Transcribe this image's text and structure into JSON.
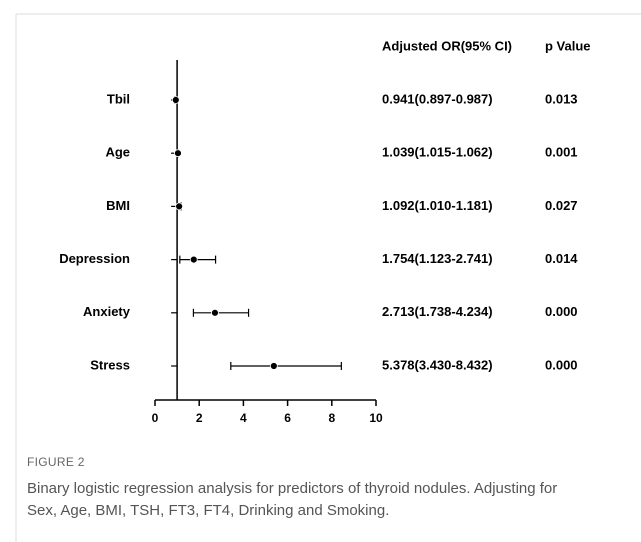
{
  "chart_data": {
    "type": "forest",
    "or_header": "Adjusted OR(95% CI)",
    "p_header": "p Value",
    "categories": [
      "Tbil",
      "Age",
      "BMI",
      "Depression",
      "Anxiety",
      "Stress"
    ],
    "values": [
      0.941,
      1.039,
      1.092,
      1.754,
      2.713,
      5.378
    ],
    "ci_low": [
      0.897,
      1.015,
      1.01,
      1.123,
      1.738,
      3.43
    ],
    "ci_high": [
      0.987,
      1.062,
      1.181,
      2.741,
      4.234,
      8.432
    ],
    "value_labels": [
      "0.941(0.897-0.987)",
      "1.039(1.015-1.062)",
      "1.092(1.010-1.181)",
      "1.754(1.123-2.741)",
      "2.713(1.738-4.234)",
      "5.378(3.430-8.432)"
    ],
    "p_values": [
      "0.013",
      "0.001",
      "0.027",
      "0.014",
      "0.000",
      "0.000"
    ],
    "reference": 1,
    "xlim": [
      0,
      10
    ],
    "xticks": [
      0,
      2,
      4,
      6,
      8,
      10
    ],
    "color": "#000000",
    "figure_label": "FIGURE 2",
    "caption": "Binary logistic regression analysis for predictors of thyroid nodules. Adjusting for Sex, Age, BMI, TSH, FT3, FT4, Drinking and Smoking."
  }
}
